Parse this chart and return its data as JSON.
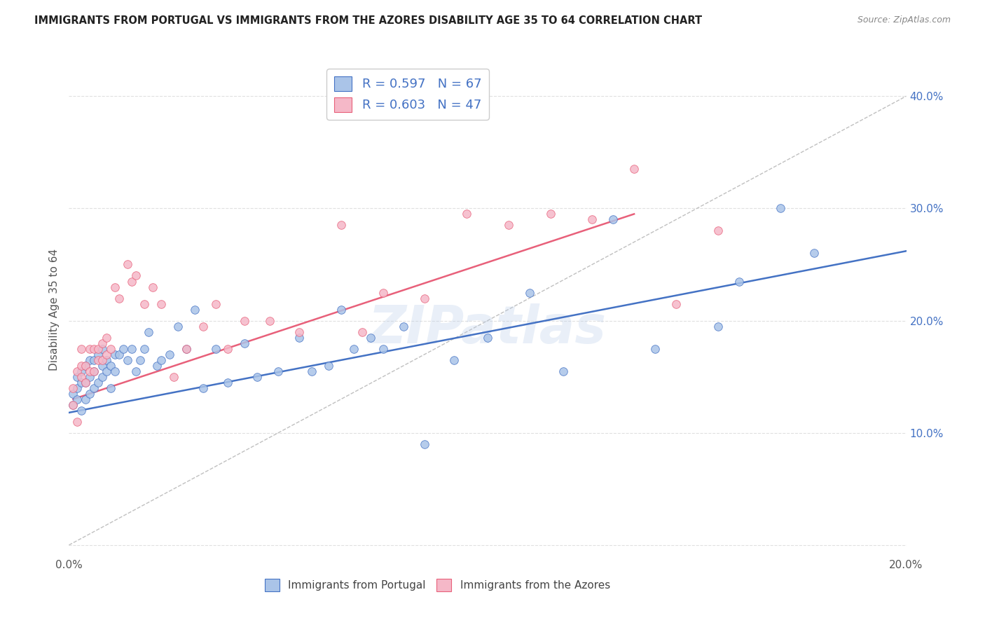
{
  "title": "IMMIGRANTS FROM PORTUGAL VS IMMIGRANTS FROM THE AZORES DISABILITY AGE 35 TO 64 CORRELATION CHART",
  "source": "Source: ZipAtlas.com",
  "ylabel": "Disability Age 35 to 64",
  "xlim": [
    0.0,
    0.2
  ],
  "ylim": [
    -0.01,
    0.43
  ],
  "xticks": [
    0.0,
    0.04,
    0.08,
    0.12,
    0.16,
    0.2
  ],
  "yticks": [
    0.0,
    0.1,
    0.2,
    0.3,
    0.4
  ],
  "xtick_labels": [
    "0.0%",
    "",
    "",
    "",
    "",
    "20.0%"
  ],
  "ytick_labels": [
    "",
    "10.0%",
    "20.0%",
    "30.0%",
    "40.0%"
  ],
  "blue_color": "#aac4e8",
  "pink_color": "#f5b8c8",
  "blue_line_color": "#4472c4",
  "pink_line_color": "#e8607a",
  "diag_line_color": "#c0c0c0",
  "legend_R_blue": "R = 0.597",
  "legend_N_blue": "N = 67",
  "legend_R_pink": "R = 0.603",
  "legend_N_pink": "N = 47",
  "blue_scatter_x": [
    0.001,
    0.001,
    0.002,
    0.002,
    0.002,
    0.003,
    0.003,
    0.003,
    0.004,
    0.004,
    0.004,
    0.005,
    0.005,
    0.005,
    0.006,
    0.006,
    0.006,
    0.007,
    0.007,
    0.008,
    0.008,
    0.008,
    0.009,
    0.009,
    0.01,
    0.01,
    0.011,
    0.011,
    0.012,
    0.013,
    0.014,
    0.015,
    0.016,
    0.017,
    0.018,
    0.019,
    0.021,
    0.022,
    0.024,
    0.026,
    0.028,
    0.03,
    0.032,
    0.035,
    0.038,
    0.042,
    0.045,
    0.05,
    0.055,
    0.058,
    0.062,
    0.065,
    0.068,
    0.072,
    0.075,
    0.08,
    0.085,
    0.092,
    0.1,
    0.11,
    0.118,
    0.13,
    0.14,
    0.155,
    0.16,
    0.17,
    0.178
  ],
  "blue_scatter_y": [
    0.125,
    0.135,
    0.13,
    0.14,
    0.15,
    0.12,
    0.145,
    0.155,
    0.13,
    0.145,
    0.16,
    0.135,
    0.15,
    0.165,
    0.14,
    0.155,
    0.165,
    0.145,
    0.17,
    0.15,
    0.16,
    0.175,
    0.155,
    0.165,
    0.14,
    0.16,
    0.17,
    0.155,
    0.17,
    0.175,
    0.165,
    0.175,
    0.155,
    0.165,
    0.175,
    0.19,
    0.16,
    0.165,
    0.17,
    0.195,
    0.175,
    0.21,
    0.14,
    0.175,
    0.145,
    0.18,
    0.15,
    0.155,
    0.185,
    0.155,
    0.16,
    0.21,
    0.175,
    0.185,
    0.175,
    0.195,
    0.09,
    0.165,
    0.185,
    0.225,
    0.155,
    0.29,
    0.175,
    0.195,
    0.235,
    0.3,
    0.26
  ],
  "pink_scatter_x": [
    0.001,
    0.001,
    0.002,
    0.002,
    0.003,
    0.003,
    0.003,
    0.004,
    0.004,
    0.005,
    0.005,
    0.006,
    0.006,
    0.007,
    0.007,
    0.008,
    0.008,
    0.009,
    0.009,
    0.01,
    0.011,
    0.012,
    0.014,
    0.015,
    0.016,
    0.018,
    0.02,
    0.022,
    0.025,
    0.028,
    0.032,
    0.035,
    0.038,
    0.042,
    0.048,
    0.055,
    0.065,
    0.07,
    0.075,
    0.085,
    0.095,
    0.105,
    0.115,
    0.125,
    0.135,
    0.145,
    0.155
  ],
  "pink_scatter_y": [
    0.125,
    0.14,
    0.11,
    0.155,
    0.15,
    0.16,
    0.175,
    0.145,
    0.16,
    0.155,
    0.175,
    0.155,
    0.175,
    0.165,
    0.175,
    0.165,
    0.18,
    0.17,
    0.185,
    0.175,
    0.23,
    0.22,
    0.25,
    0.235,
    0.24,
    0.215,
    0.23,
    0.215,
    0.15,
    0.175,
    0.195,
    0.215,
    0.175,
    0.2,
    0.2,
    0.19,
    0.285,
    0.19,
    0.225,
    0.22,
    0.295,
    0.285,
    0.295,
    0.29,
    0.335,
    0.215,
    0.28
  ],
  "blue_line_x": [
    0.0,
    0.2
  ],
  "blue_line_y": [
    0.118,
    0.262
  ],
  "pink_line_x": [
    0.001,
    0.135
  ],
  "pink_line_y": [
    0.13,
    0.295
  ],
  "diag_line_x": [
    0.0,
    0.2
  ],
  "diag_line_y": [
    0.0,
    0.4
  ],
  "watermark": "ZIPatlas",
  "background_color": "#ffffff",
  "grid_color": "#e0e0e0"
}
